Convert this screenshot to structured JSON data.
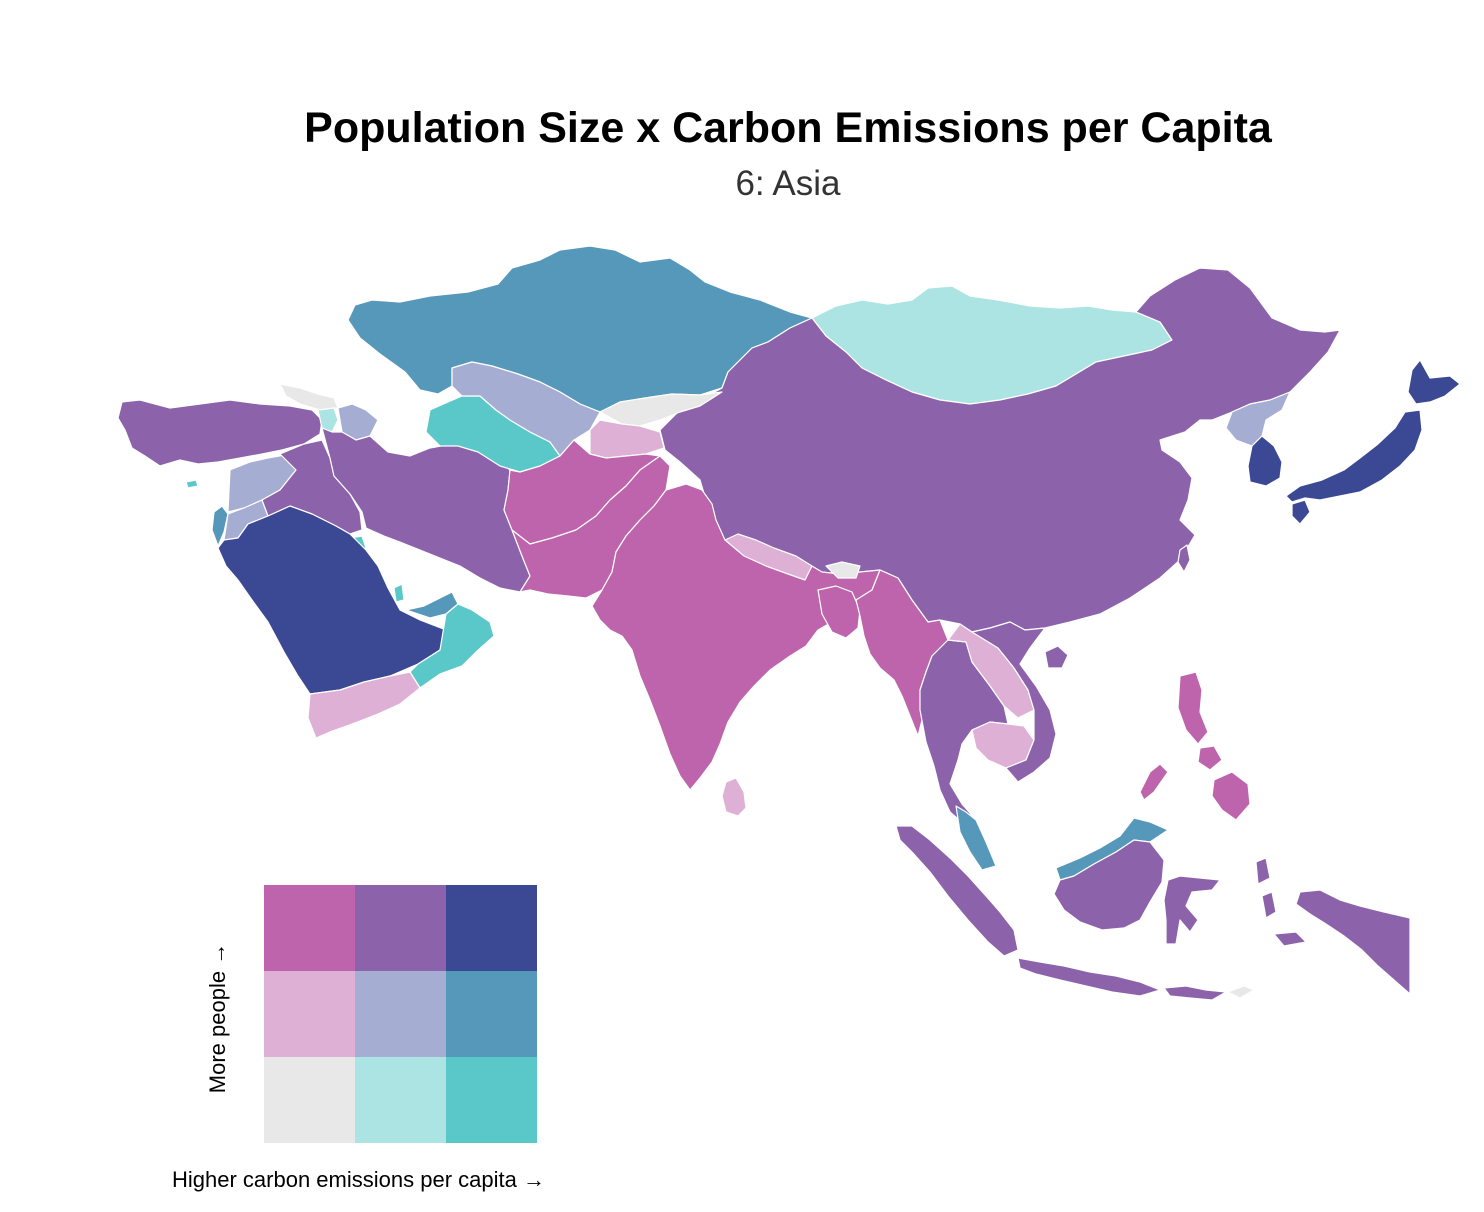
{
  "title": "Population Size x Carbon Emissions per Capita",
  "subtitle": "6: Asia",
  "legend": {
    "x_label": "Higher carbon emissions per capita →",
    "y_label": "More people →",
    "grid": [
      [
        "#be64ac",
        "#8c62aa",
        "#3b4994"
      ],
      [
        "#dfb0d6",
        "#a5add3",
        "#5698b9"
      ],
      [
        "#e8e8e8",
        "#ace4e4",
        "#5ac8c8"
      ]
    ]
  },
  "countries": [
    {
      "name": "Kazakhstan",
      "class": "high CO2 / mid pop",
      "color": "#5698b9"
    },
    {
      "name": "Mongolia",
      "class": "mid CO2 / low pop",
      "color": "#ace4e4"
    },
    {
      "name": "China",
      "class": "mid CO2 / high pop",
      "color": "#8c62aa"
    },
    {
      "name": "Japan",
      "class": "high CO2 / high pop",
      "color": "#3b4994"
    },
    {
      "name": "South Korea",
      "class": "high CO2 / high pop",
      "color": "#3b4994"
    },
    {
      "name": "North Korea",
      "class": "mid CO2 / mid pop",
      "color": "#a5add3"
    },
    {
      "name": "India",
      "class": "low CO2 / high pop",
      "color": "#be64ac"
    },
    {
      "name": "Pakistan",
      "class": "low CO2 / high pop",
      "color": "#be64ac"
    },
    {
      "name": "Afghanistan",
      "class": "low CO2 / high pop",
      "color": "#be64ac"
    },
    {
      "name": "Bangladesh",
      "class": "low CO2 / high pop",
      "color": "#be64ac"
    },
    {
      "name": "Myanmar",
      "class": "low CO2 / high pop",
      "color": "#be64ac"
    },
    {
      "name": "Philippines",
      "class": "low CO2 / high pop",
      "color": "#be64ac"
    },
    {
      "name": "Nepal",
      "class": "low CO2 / mid pop",
      "color": "#dfb0d6"
    },
    {
      "name": "Sri Lanka",
      "class": "low CO2 / mid pop",
      "color": "#dfb0d6"
    },
    {
      "name": "Yemen",
      "class": "low CO2 / mid pop",
      "color": "#dfb0d6"
    },
    {
      "name": "Laos",
      "class": "low CO2 / mid pop",
      "color": "#dfb0d6"
    },
    {
      "name": "Cambodia",
      "class": "low CO2 / mid pop",
      "color": "#dfb0d6"
    },
    {
      "name": "Tajikistan",
      "class": "low CO2 / mid pop",
      "color": "#dfb0d6"
    },
    {
      "name": "Kyrgyzstan",
      "class": "low CO2 / low pop",
      "color": "#e8e8e8"
    },
    {
      "name": "Georgia",
      "class": "low CO2 / low pop",
      "color": "#e8e8e8"
    },
    {
      "name": "Bhutan",
      "class": "low CO2 / low pop",
      "color": "#e8e8e8"
    },
    {
      "name": "Timor-Leste",
      "class": "low CO2 / low pop",
      "color": "#e8e8e8"
    },
    {
      "name": "Uzbekistan",
      "class": "mid CO2 / mid pop",
      "color": "#a5add3"
    },
    {
      "name": "Syria",
      "class": "mid CO2 / mid pop",
      "color": "#a5add3"
    },
    {
      "name": "Jordan",
      "class": "mid CO2 / mid pop",
      "color": "#a5add3"
    },
    {
      "name": "Azerbaijan",
      "class": "mid CO2 / mid pop",
      "color": "#a5add3"
    },
    {
      "name": "Turkmenistan",
      "class": "high CO2 / low pop",
      "color": "#5ac8c8"
    },
    {
      "name": "Oman",
      "class": "high CO2 / low pop",
      "color": "#5ac8c8"
    },
    {
      "name": "Kuwait",
      "class": "high CO2 / low pop",
      "color": "#5ac8c8"
    },
    {
      "name": "Qatar",
      "class": "high CO2 / low pop",
      "color": "#5ac8c8"
    },
    {
      "name": "UAE",
      "class": "high CO2 / mid pop",
      "color": "#5698b9"
    },
    {
      "name": "Israel",
      "class": "high CO2 / mid pop",
      "color": "#5698b9"
    },
    {
      "name": "Malaysia",
      "class": "high CO2 / mid pop",
      "color": "#5698b9"
    },
    {
      "name": "Saudi Arabia",
      "class": "high CO2 / high pop",
      "color": "#3b4994"
    },
    {
      "name": "Turkey",
      "class": "mid CO2 / high pop",
      "color": "#8c62aa"
    },
    {
      "name": "Iran",
      "class": "mid CO2 / high pop",
      "color": "#8c62aa"
    },
    {
      "name": "Iraq",
      "class": "mid CO2 / high pop",
      "color": "#8c62aa"
    },
    {
      "name": "Thailand",
      "class": "mid CO2 / high pop",
      "color": "#8c62aa"
    },
    {
      "name": "Vietnam",
      "class": "mid CO2 / high pop",
      "color": "#8c62aa"
    },
    {
      "name": "Indonesia",
      "class": "mid CO2 / high pop",
      "color": "#8c62aa"
    },
    {
      "name": "Armenia",
      "class": "mid CO2 / low pop",
      "color": "#ace4e4"
    }
  ]
}
